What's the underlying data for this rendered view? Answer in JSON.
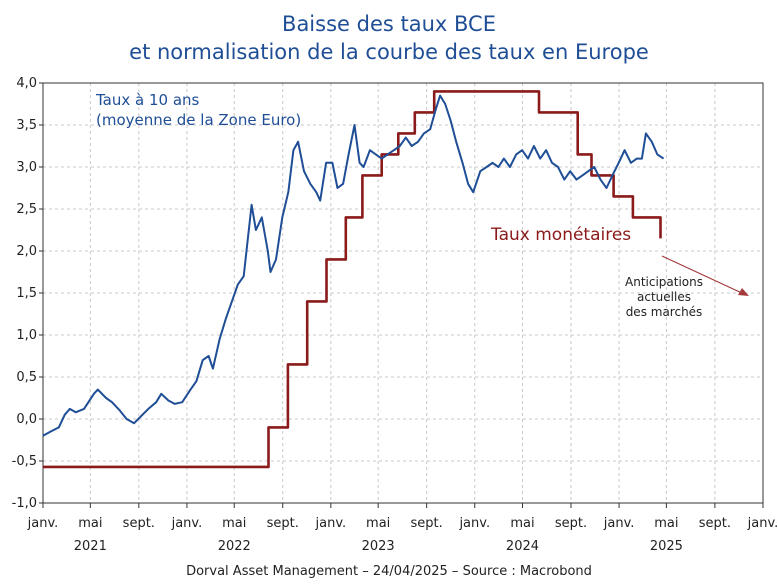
{
  "chart_data": {
    "type": "line",
    "title": [
      "Baisse des taux BCE",
      "et normalisation de la courbe des taux en Europe"
    ],
    "ylim": [
      -1.0,
      4.0
    ],
    "y_ticks": [
      "4,0",
      "3,5",
      "3,0",
      "2,5",
      "2,0",
      "1,5",
      "1,0",
      "0,5",
      "0,0",
      "-0,5",
      "-1,0"
    ],
    "x_range": [
      "2021-01",
      "2026-01"
    ],
    "x_ticks": [
      {
        "date": "2021-01",
        "label": "janv."
      },
      {
        "date": "2021-05",
        "label": "mai"
      },
      {
        "date": "2021-09",
        "label": "sept."
      },
      {
        "date": "2022-01",
        "label": "janv."
      },
      {
        "date": "2022-05",
        "label": "mai"
      },
      {
        "date": "2022-09",
        "label": "sept."
      },
      {
        "date": "2023-01",
        "label": "janv."
      },
      {
        "date": "2023-05",
        "label": "mai"
      },
      {
        "date": "2023-09",
        "label": "sept."
      },
      {
        "date": "2024-01",
        "label": "janv."
      },
      {
        "date": "2024-05",
        "label": "mai"
      },
      {
        "date": "2024-09",
        "label": "sept."
      },
      {
        "date": "2025-01",
        "label": "janv."
      },
      {
        "date": "2025-05",
        "label": "mai"
      },
      {
        "date": "2025-09",
        "label": "sept."
      },
      {
        "date": "2026-01",
        "label": "janv."
      }
    ],
    "years": [
      {
        "date": "2021-05",
        "label": "2021"
      },
      {
        "date": "2022-05",
        "label": "2022"
      },
      {
        "date": "2023-05",
        "label": "2023"
      },
      {
        "date": "2024-05",
        "label": "2024"
      },
      {
        "date": "2025-05",
        "label": "2025"
      }
    ],
    "grid": true,
    "series": [
      {
        "name": "Taux à 10 ans (moyenne de la Zone Euro)",
        "color": "#1f4e96",
        "style": "line",
        "points": [
          [
            "2021-01-01",
            -0.2
          ],
          [
            "2021-01-20",
            -0.15
          ],
          [
            "2021-02-10",
            -0.1
          ],
          [
            "2021-02-25",
            0.05
          ],
          [
            "2021-03-10",
            0.12
          ],
          [
            "2021-03-25",
            0.08
          ],
          [
            "2021-04-15",
            0.12
          ],
          [
            "2021-05-10",
            0.3
          ],
          [
            "2021-05-20",
            0.35
          ],
          [
            "2021-06-10",
            0.25
          ],
          [
            "2021-06-25",
            0.2
          ],
          [
            "2021-07-15",
            0.1
          ],
          [
            "2021-08-01",
            0.0
          ],
          [
            "2021-08-20",
            -0.05
          ],
          [
            "2021-09-10",
            0.05
          ],
          [
            "2021-09-25",
            0.12
          ],
          [
            "2021-10-15",
            0.2
          ],
          [
            "2021-10-28",
            0.3
          ],
          [
            "2021-11-15",
            0.22
          ],
          [
            "2021-12-01",
            0.18
          ],
          [
            "2021-12-20",
            0.2
          ],
          [
            "2022-01-10",
            0.35
          ],
          [
            "2022-01-25",
            0.45
          ],
          [
            "2022-02-10",
            0.7
          ],
          [
            "2022-02-25",
            0.75
          ],
          [
            "2022-03-08",
            0.6
          ],
          [
            "2022-03-25",
            0.95
          ],
          [
            "2022-04-10",
            1.2
          ],
          [
            "2022-04-25",
            1.4
          ],
          [
            "2022-05-10",
            1.6
          ],
          [
            "2022-05-25",
            1.7
          ],
          [
            "2022-06-14",
            2.55
          ],
          [
            "2022-06-25",
            2.25
          ],
          [
            "2022-07-10",
            2.4
          ],
          [
            "2022-07-25",
            2.0
          ],
          [
            "2022-08-01",
            1.75
          ],
          [
            "2022-08-15",
            1.9
          ],
          [
            "2022-08-31",
            2.4
          ],
          [
            "2022-09-15",
            2.7
          ],
          [
            "2022-09-28",
            3.2
          ],
          [
            "2022-10-10",
            3.3
          ],
          [
            "2022-10-25",
            2.95
          ],
          [
            "2022-11-10",
            2.8
          ],
          [
            "2022-11-25",
            2.7
          ],
          [
            "2022-12-05",
            2.6
          ],
          [
            "2022-12-20",
            3.05
          ],
          [
            "2023-01-05",
            3.05
          ],
          [
            "2023-01-18",
            2.75
          ],
          [
            "2023-02-01",
            2.8
          ],
          [
            "2023-02-15",
            3.15
          ],
          [
            "2023-03-02",
            3.5
          ],
          [
            "2023-03-15",
            3.05
          ],
          [
            "2023-03-25",
            3.0
          ],
          [
            "2023-04-10",
            3.2
          ],
          [
            "2023-04-25",
            3.15
          ],
          [
            "2023-05-10",
            3.1
          ],
          [
            "2023-05-25",
            3.15
          ],
          [
            "2023-06-10",
            3.2
          ],
          [
            "2023-06-25",
            3.25
          ],
          [
            "2023-07-10",
            3.35
          ],
          [
            "2023-07-25",
            3.25
          ],
          [
            "2023-08-10",
            3.3
          ],
          [
            "2023-08-25",
            3.4
          ],
          [
            "2023-09-10",
            3.45
          ],
          [
            "2023-09-25",
            3.7
          ],
          [
            "2023-10-05",
            3.85
          ],
          [
            "2023-10-18",
            3.75
          ],
          [
            "2023-11-01",
            3.55
          ],
          [
            "2023-11-15",
            3.3
          ],
          [
            "2023-12-01",
            3.05
          ],
          [
            "2023-12-15",
            2.8
          ],
          [
            "2023-12-28",
            2.7
          ],
          [
            "2024-01-15",
            2.95
          ],
          [
            "2024-01-31",
            3.0
          ],
          [
            "2024-02-15",
            3.05
          ],
          [
            "2024-03-01",
            3.0
          ],
          [
            "2024-03-15",
            3.1
          ],
          [
            "2024-03-30",
            3.0
          ],
          [
            "2024-04-15",
            3.15
          ],
          [
            "2024-04-30",
            3.2
          ],
          [
            "2024-05-15",
            3.1
          ],
          [
            "2024-05-30",
            3.25
          ],
          [
            "2024-06-15",
            3.1
          ],
          [
            "2024-06-30",
            3.2
          ],
          [
            "2024-07-15",
            3.05
          ],
          [
            "2024-07-30",
            3.0
          ],
          [
            "2024-08-15",
            2.85
          ],
          [
            "2024-08-30",
            2.95
          ],
          [
            "2024-09-15",
            2.85
          ],
          [
            "2024-09-30",
            2.9
          ],
          [
            "2024-10-15",
            2.95
          ],
          [
            "2024-10-30",
            3.0
          ],
          [
            "2024-11-15",
            2.85
          ],
          [
            "2024-11-30",
            2.75
          ],
          [
            "2024-12-15",
            2.9
          ],
          [
            "2024-12-31",
            3.05
          ],
          [
            "2025-01-15",
            3.2
          ],
          [
            "2025-01-31",
            3.05
          ],
          [
            "2025-02-15",
            3.1
          ],
          [
            "2025-02-28",
            3.1
          ],
          [
            "2025-03-10",
            3.4
          ],
          [
            "2025-03-25",
            3.3
          ],
          [
            "2025-04-08",
            3.15
          ],
          [
            "2025-04-24",
            3.1
          ]
        ]
      },
      {
        "name": "Taux monétaires",
        "color": "#8b1a1a",
        "style": "step",
        "points": [
          [
            "2021-01-01",
            -0.57
          ],
          [
            "2022-07-27",
            -0.57
          ],
          [
            "2022-07-27",
            -0.1
          ],
          [
            "2022-09-14",
            -0.1
          ],
          [
            "2022-09-14",
            0.65
          ],
          [
            "2022-11-02",
            0.65
          ],
          [
            "2022-11-02",
            1.4
          ],
          [
            "2022-12-21",
            1.4
          ],
          [
            "2022-12-21",
            1.9
          ],
          [
            "2023-02-08",
            1.9
          ],
          [
            "2023-02-08",
            2.4
          ],
          [
            "2023-03-22",
            2.4
          ],
          [
            "2023-03-22",
            2.9
          ],
          [
            "2023-05-10",
            2.9
          ],
          [
            "2023-05-10",
            3.15
          ],
          [
            "2023-06-21",
            3.15
          ],
          [
            "2023-06-21",
            3.4
          ],
          [
            "2023-08-02",
            3.4
          ],
          [
            "2023-08-02",
            3.65
          ],
          [
            "2023-09-20",
            3.65
          ],
          [
            "2023-09-20",
            3.9
          ],
          [
            "2024-06-12",
            3.9
          ],
          [
            "2024-06-12",
            3.65
          ],
          [
            "2024-09-18",
            3.65
          ],
          [
            "2024-09-18",
            3.15
          ],
          [
            "2024-10-23",
            3.15
          ],
          [
            "2024-10-23",
            2.9
          ],
          [
            "2024-12-18",
            2.9
          ],
          [
            "2024-12-18",
            2.65
          ],
          [
            "2025-02-05",
            2.65
          ],
          [
            "2025-02-05",
            2.4
          ],
          [
            "2025-03-12",
            2.4
          ],
          [
            "2025-03-12",
            2.4
          ],
          [
            "2025-04-16",
            2.4
          ],
          [
            "2025-04-16",
            2.15
          ]
        ]
      }
    ],
    "annotations": {
      "blue_label": [
        "Taux à 10 ans",
        "(moyenne de la Zone Euro)"
      ],
      "red_label": "Taux monétaires",
      "anticipation_label": [
        "Anticipations",
        "actuelles",
        "des marchés"
      ]
    },
    "footer": "Dorval Asset Management – 24/04/2025 –   Source : Macrobond"
  }
}
